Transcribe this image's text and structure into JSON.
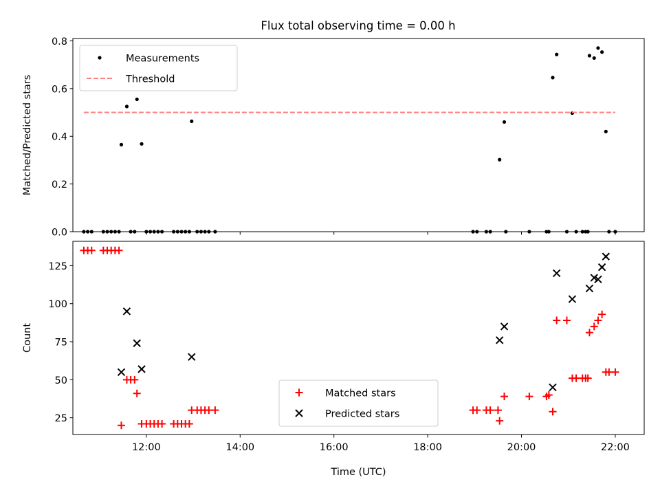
{
  "figure": {
    "title": "Flux total observing time = 0.00 h"
  },
  "chart_data": [
    {
      "type": "scatter",
      "ylabel": "Matched/Predicted stars",
      "xlim": [
        "10:26",
        "22:37"
      ],
      "ylim": [
        0,
        0.81
      ],
      "yticks": [
        "0.0",
        "0.2",
        "0.4",
        "0.6",
        "0.8"
      ],
      "xticks": [
        "12:00",
        "14:00",
        "16:00",
        "18:00",
        "20:00",
        "22:00"
      ],
      "grid": false,
      "legend": {
        "placement": "top-left"
      },
      "series": [
        {
          "name": "Measurements",
          "marker": "dot",
          "color": "#000000",
          "points": [
            [
              "10:40",
              0
            ],
            [
              "10:45",
              0
            ],
            [
              "10:50",
              0
            ],
            [
              "11:05",
              0
            ],
            [
              "11:10",
              0
            ],
            [
              "11:15",
              0
            ],
            [
              "11:20",
              0
            ],
            [
              "11:25",
              0
            ],
            [
              "11:28",
              0.365
            ],
            [
              "11:35",
              0.525
            ],
            [
              "11:40",
              0
            ],
            [
              "11:45",
              0
            ],
            [
              "11:48",
              0.555
            ],
            [
              "11:54",
              0.368
            ],
            [
              "12:00",
              0
            ],
            [
              "12:05",
              0
            ],
            [
              "12:10",
              0
            ],
            [
              "12:15",
              0
            ],
            [
              "12:20",
              0
            ],
            [
              "12:35",
              0
            ],
            [
              "12:40",
              0
            ],
            [
              "12:45",
              0
            ],
            [
              "12:50",
              0
            ],
            [
              "12:55",
              0
            ],
            [
              "12:58",
              0.463
            ],
            [
              "13:05",
              0
            ],
            [
              "13:10",
              0
            ],
            [
              "13:15",
              0
            ],
            [
              "13:20",
              0
            ],
            [
              "13:28",
              0
            ],
            [
              "18:58",
              0
            ],
            [
              "19:03",
              0
            ],
            [
              "19:15",
              0
            ],
            [
              "19:20",
              0
            ],
            [
              "19:32",
              0.302
            ],
            [
              "19:38",
              0.46
            ],
            [
              "19:40",
              0
            ],
            [
              "20:10",
              0
            ],
            [
              "20:32",
              0
            ],
            [
              "20:35",
              0
            ],
            [
              "20:40",
              0.646
            ],
            [
              "20:45",
              0.743
            ],
            [
              "20:58",
              0
            ],
            [
              "21:05",
              0.497
            ],
            [
              "21:10",
              0
            ],
            [
              "21:18",
              0
            ],
            [
              "21:22",
              0
            ],
            [
              "21:25",
              0
            ],
            [
              "21:27",
              0.738
            ],
            [
              "21:33",
              0.728
            ],
            [
              "21:38",
              0.77
            ],
            [
              "21:43",
              0.753
            ],
            [
              "21:48",
              0.42
            ],
            [
              "21:52",
              0
            ],
            [
              "22:00",
              0
            ]
          ]
        },
        {
          "name": "Threshold",
          "kind": "line",
          "style": "dashed",
          "color": "#ff7f7f",
          "points": [
            [
              "10:40",
              0.5
            ],
            [
              "22:00",
              0.5
            ]
          ]
        }
      ]
    },
    {
      "type": "scatter",
      "xlabel": "Time (UTC)",
      "ylabel": "Count",
      "xlim": [
        "10:26",
        "22:37"
      ],
      "ylim": [
        14,
        141
      ],
      "yticks": [
        "25",
        "50",
        "75",
        "100",
        "125"
      ],
      "xticks": [
        "12:00",
        "14:00",
        "16:00",
        "18:00",
        "20:00",
        "22:00"
      ],
      "grid": false,
      "legend": {
        "placement": "bottom-center"
      },
      "series": [
        {
          "name": "Matched stars",
          "marker": "plus",
          "color": "#ff0000",
          "points": [
            [
              "10:40",
              135
            ],
            [
              "10:45",
              135
            ],
            [
              "10:50",
              135
            ],
            [
              "11:05",
              135
            ],
            [
              "11:10",
              135
            ],
            [
              "11:15",
              135
            ],
            [
              "11:20",
              135
            ],
            [
              "11:25",
              135
            ],
            [
              "11:28",
              20
            ],
            [
              "11:35",
              50
            ],
            [
              "11:40",
              50
            ],
            [
              "11:45",
              50
            ],
            [
              "11:48",
              41
            ],
            [
              "11:54",
              21
            ],
            [
              "12:00",
              21
            ],
            [
              "12:05",
              21
            ],
            [
              "12:10",
              21
            ],
            [
              "12:15",
              21
            ],
            [
              "12:20",
              21
            ],
            [
              "12:35",
              21
            ],
            [
              "12:40",
              21
            ],
            [
              "12:45",
              21
            ],
            [
              "12:50",
              21
            ],
            [
              "12:55",
              21
            ],
            [
              "12:58",
              30
            ],
            [
              "13:05",
              30
            ],
            [
              "13:10",
              30
            ],
            [
              "13:15",
              30
            ],
            [
              "13:20",
              30
            ],
            [
              "13:28",
              30
            ],
            [
              "18:58",
              30
            ],
            [
              "19:03",
              30
            ],
            [
              "19:15",
              30
            ],
            [
              "19:20",
              30
            ],
            [
              "19:30",
              30
            ],
            [
              "19:32",
              23
            ],
            [
              "19:38",
              39
            ],
            [
              "20:10",
              39
            ],
            [
              "20:32",
              39
            ],
            [
              "20:35",
              40
            ],
            [
              "20:40",
              29
            ],
            [
              "20:45",
              89
            ],
            [
              "20:58",
              89
            ],
            [
              "21:05",
              51
            ],
            [
              "21:10",
              51
            ],
            [
              "21:18",
              51
            ],
            [
              "21:22",
              51
            ],
            [
              "21:25",
              51
            ],
            [
              "21:27",
              81
            ],
            [
              "21:33",
              85
            ],
            [
              "21:38",
              89
            ],
            [
              "21:43",
              93
            ],
            [
              "21:48",
              55
            ],
            [
              "21:52",
              55
            ],
            [
              "22:00",
              55
            ]
          ]
        },
        {
          "name": "Predicted stars",
          "marker": "x",
          "color": "#000000",
          "points": [
            [
              "11:28",
              55
            ],
            [
              "11:35",
              95
            ],
            [
              "11:48",
              74
            ],
            [
              "11:54",
              57
            ],
            [
              "12:58",
              65
            ],
            [
              "19:32",
              76
            ],
            [
              "19:38",
              85
            ],
            [
              "20:40",
              45
            ],
            [
              "20:45",
              120
            ],
            [
              "21:05",
              103
            ],
            [
              "21:27",
              110
            ],
            [
              "21:33",
              117
            ],
            [
              "21:38",
              116
            ],
            [
              "21:43",
              124
            ],
            [
              "21:48",
              131
            ]
          ]
        }
      ]
    }
  ]
}
